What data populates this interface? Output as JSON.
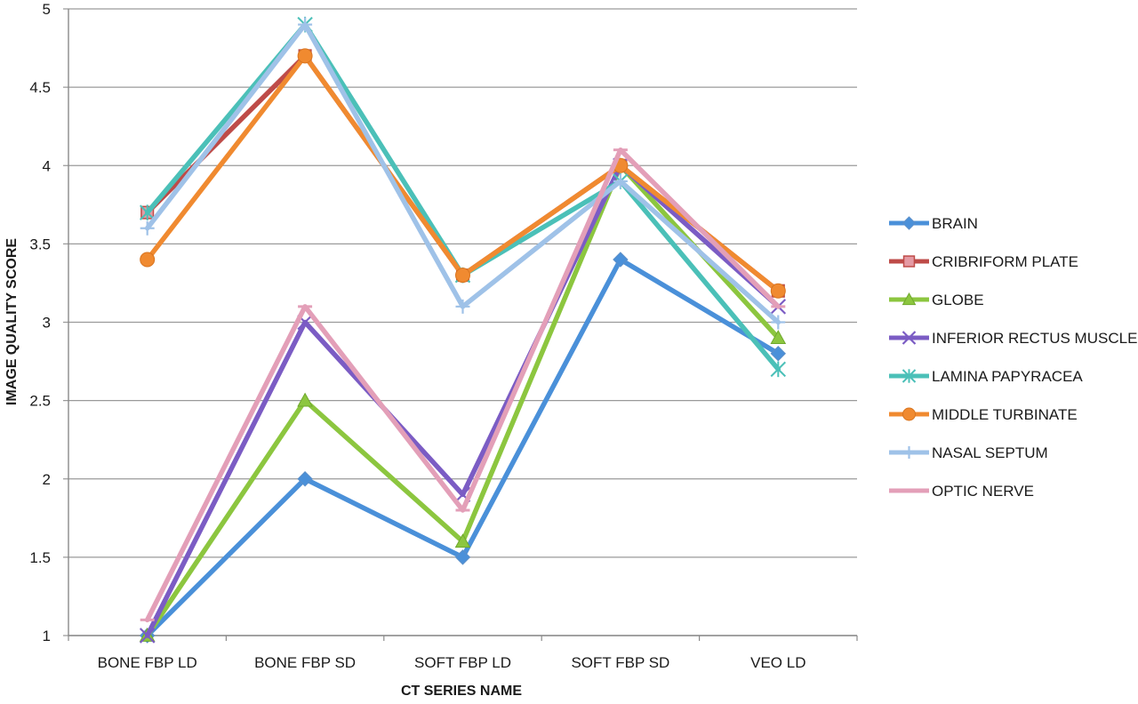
{
  "chart_data": {
    "type": "line",
    "xlabel": "CT SERIES NAME",
    "ylabel": "IMAGE QUALITY SCORE",
    "ylim": [
      1,
      5
    ],
    "yticks": [
      "1",
      "1.5",
      "2",
      "2.5",
      "3",
      "3.5",
      "4",
      "4.5",
      "5"
    ],
    "categories": [
      "BONE FBP LD",
      "BONE FBP SD",
      "SOFT FBP LD",
      "SOFT FBP SD",
      "VEO LD"
    ],
    "grid": true,
    "legend_position": "right",
    "series": [
      {
        "name": "BRAIN",
        "color": "#4a90d9",
        "marker": "diamond",
        "values": [
          1.0,
          2.0,
          1.5,
          3.4,
          2.8
        ]
      },
      {
        "name": "CRIBRIFORM PLATE",
        "color": "#be4b48",
        "marker": "square",
        "values": [
          3.7,
          4.7,
          3.3,
          4.0,
          3.2
        ]
      },
      {
        "name": "GLOBE",
        "color": "#8cc63f",
        "marker": "triangle",
        "values": [
          1.0,
          2.5,
          1.6,
          4.0,
          2.9
        ]
      },
      {
        "name": "INFERIOR RECTUS MUSCLE",
        "color": "#7b5cc4",
        "marker": "x",
        "values": [
          1.0,
          3.0,
          1.9,
          4.0,
          3.1
        ]
      },
      {
        "name": "LAMINA PAPYRACEA",
        "color": "#4bc0b8",
        "marker": "star",
        "values": [
          3.7,
          4.9,
          3.3,
          3.9,
          2.7
        ]
      },
      {
        "name": "MIDDLE TURBINATE",
        "color": "#f08a30",
        "marker": "circle",
        "values": [
          3.4,
          4.7,
          3.3,
          4.0,
          3.2
        ]
      },
      {
        "name": "NASAL SEPTUM",
        "color": "#9fc2e8",
        "marker": "plus",
        "values": [
          3.6,
          4.9,
          3.1,
          3.9,
          3.0
        ]
      },
      {
        "name": "OPTIC NERVE",
        "color": "#e39fb8",
        "marker": "dash",
        "values": [
          1.1,
          3.1,
          1.8,
          4.1,
          3.1
        ]
      }
    ]
  }
}
